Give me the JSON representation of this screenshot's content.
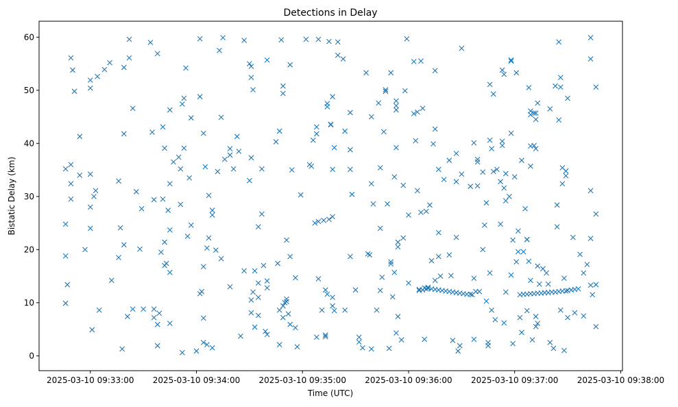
{
  "chart_data": {
    "type": "scatter",
    "title": "Detections in Delay",
    "xlabel": "Time (UTC)",
    "ylabel": "Bistatic Delay (km)",
    "x_unit": "seconds after 2025-03-10 09:33:00",
    "xlim": [
      -29,
      301
    ],
    "ylim": [
      -2.8,
      63
    ],
    "grid": false,
    "marker": "x",
    "color": "#1f77b4",
    "x_ticks": [
      {
        "value": 0,
        "label": "2025-03-10 09:33:00"
      },
      {
        "value": 60,
        "label": "2025-03-10 09:34:00"
      },
      {
        "value": 120,
        "label": "2025-03-10 09:35:00"
      },
      {
        "value": 180,
        "label": "2025-03-10 09:36:00"
      },
      {
        "value": 240,
        "label": "2025-03-10 09:37:00"
      },
      {
        "value": 300,
        "label": "2025-03-10 09:38:00"
      }
    ],
    "y_ticks": [
      {
        "value": 0,
        "label": "0"
      },
      {
        "value": 10,
        "label": "10"
      },
      {
        "value": 20,
        "label": "20"
      },
      {
        "value": 30,
        "label": "30"
      },
      {
        "value": 40,
        "label": "40"
      },
      {
        "value": 50,
        "label": "50"
      },
      {
        "value": 60,
        "label": "60"
      }
    ],
    "points": [
      [
        -14,
        35.2
      ],
      [
        -14,
        24.8
      ],
      [
        -14,
        18.8
      ],
      [
        -13,
        13.4
      ],
      [
        -14,
        9.9
      ],
      [
        -11,
        36
      ],
      [
        -11,
        56.1
      ],
      [
        -10,
        53.8
      ],
      [
        -11,
        32.4
      ],
      [
        -11,
        29.5
      ],
      [
        -9,
        49.8
      ],
      [
        -6,
        41.3
      ],
      [
        -6,
        34
      ],
      [
        -3,
        20
      ],
      [
        0,
        51.9
      ],
      [
        0,
        50.4
      ],
      [
        0,
        34.2
      ],
      [
        0,
        28
      ],
      [
        0,
        24
      ],
      [
        1,
        4.9
      ],
      [
        2,
        30
      ],
      [
        3,
        31.1
      ],
      [
        4,
        52.6
      ],
      [
        5,
        8.6
      ],
      [
        8,
        53.9
      ],
      [
        11,
        55.2
      ],
      [
        12,
        14.2
      ],
      [
        16,
        32.9
      ],
      [
        16,
        18.5
      ],
      [
        17,
        24.1
      ],
      [
        19,
        54.3
      ],
      [
        19,
        20.9
      ],
      [
        18,
        1.3
      ],
      [
        19,
        41.8
      ],
      [
        21,
        7.4
      ],
      [
        22,
        59.6
      ],
      [
        22,
        56.1
      ],
      [
        24,
        46.6
      ],
      [
        24,
        8.8
      ],
      [
        26,
        30.9
      ],
      [
        28,
        20.1
      ],
      [
        29,
        27.7
      ],
      [
        30,
        8.8
      ],
      [
        34,
        59
      ],
      [
        35,
        42.1
      ],
      [
        36,
        29.4
      ],
      [
        36,
        7.2
      ],
      [
        36,
        8.8
      ],
      [
        38,
        5.9
      ],
      [
        38,
        1.9
      ],
      [
        38,
        56.9
      ],
      [
        39,
        8
      ],
      [
        40,
        19.5
      ],
      [
        41,
        43.1
      ],
      [
        41,
        29.5
      ],
      [
        42,
        39.1
      ],
      [
        42,
        21.4
      ],
      [
        42,
        17
      ],
      [
        43,
        17.4
      ],
      [
        44,
        27.4
      ],
      [
        45,
        23.7
      ],
      [
        45,
        15.7
      ],
      [
        45,
        46.3
      ],
      [
        45,
        32.4
      ],
      [
        45,
        6.1
      ],
      [
        47,
        36.5
      ],
      [
        50,
        37.4
      ],
      [
        51,
        35.2
      ],
      [
        51,
        28.5
      ],
      [
        52,
        0.6
      ],
      [
        52,
        47.4
      ],
      [
        53,
        48.5
      ],
      [
        53,
        39.1
      ],
      [
        54,
        54.2
      ],
      [
        55,
        22.5
      ],
      [
        56,
        33.5
      ],
      [
        57,
        44.8
      ],
      [
        57,
        24.6
      ],
      [
        60,
        0.9
      ],
      [
        62,
        59.7
      ],
      [
        62,
        48.8
      ],
      [
        62,
        11.7
      ],
      [
        63,
        12.1
      ],
      [
        64,
        7.1
      ],
      [
        64,
        41.9
      ],
      [
        64,
        16.8
      ],
      [
        65,
        35.6
      ],
      [
        66,
        20.3
      ],
      [
        64,
        2.5
      ],
      [
        66,
        2.1
      ],
      [
        67,
        30.2
      ],
      [
        67,
        22.2
      ],
      [
        69,
        27.4
      ],
      [
        69,
        26.5
      ],
      [
        69,
        1.5
      ],
      [
        71,
        19.9
      ],
      [
        72,
        34.7
      ],
      [
        73,
        57.5
      ],
      [
        74,
        18.3
      ],
      [
        74,
        44.9
      ],
      [
        75,
        59.9
      ],
      [
        76,
        37
      ],
      [
        79,
        39
      ],
      [
        79,
        13
      ],
      [
        79,
        37.8
      ],
      [
        81,
        35.2
      ],
      [
        83,
        41.3
      ],
      [
        84,
        38.5
      ],
      [
        85,
        3.7
      ],
      [
        87,
        16
      ],
      [
        87,
        59.4
      ],
      [
        90,
        33
      ],
      [
        90,
        55
      ],
      [
        91,
        54.5
      ],
      [
        91,
        8.1
      ],
      [
        91,
        52.4
      ],
      [
        92,
        50.1
      ],
      [
        91,
        37.3
      ],
      [
        91,
        10.5
      ],
      [
        92,
        12
      ],
      [
        93,
        16
      ],
      [
        93,
        5.4
      ],
      [
        95,
        24.3
      ],
      [
        95,
        7.6
      ],
      [
        95,
        13.7
      ],
      [
        95,
        11
      ],
      [
        97,
        35.2
      ],
      [
        97,
        26.7
      ],
      [
        98,
        17
      ],
      [
        99,
        4.6
      ],
      [
        100,
        4
      ],
      [
        100,
        14.1
      ],
      [
        100,
        55.7
      ],
      [
        100,
        12.8
      ],
      [
        105,
        40.3
      ],
      [
        106,
        17.4
      ],
      [
        107,
        8.6
      ],
      [
        107,
        42.3
      ],
      [
        107,
        2.1
      ],
      [
        108,
        59.5
      ],
      [
        109,
        50.8
      ],
      [
        109,
        49.4
      ],
      [
        109,
        7.2
      ],
      [
        109,
        9.4
      ],
      [
        110,
        10
      ],
      [
        111,
        21.8
      ],
      [
        111,
        10.2
      ],
      [
        111,
        10.7
      ],
      [
        112,
        7.9
      ],
      [
        113,
        54.8
      ],
      [
        113,
        18.7
      ],
      [
        114,
        35
      ],
      [
        113,
        5.9
      ],
      [
        116,
        14.7
      ],
      [
        116,
        5.3
      ],
      [
        117,
        1.7
      ],
      [
        119,
        30.3
      ],
      [
        122,
        59.6
      ],
      [
        124,
        36
      ],
      [
        125,
        35.7
      ],
      [
        126,
        40.6
      ],
      [
        128,
        41.8
      ],
      [
        128,
        43.1
      ],
      [
        127,
        25
      ],
      [
        128,
        3.5
      ],
      [
        129,
        14.5
      ],
      [
        129,
        59.6
      ],
      [
        129,
        25.3
      ],
      [
        131,
        8.6
      ],
      [
        132,
        25.5
      ],
      [
        133,
        3.9
      ],
      [
        133,
        12.4
      ],
      [
        133,
        3.6
      ],
      [
        134,
        11.6
      ],
      [
        134,
        47.5
      ],
      [
        134,
        46.9
      ],
      [
        135,
        25.7
      ],
      [
        135,
        59.2
      ],
      [
        136,
        43.5
      ],
      [
        136,
        43.6
      ],
      [
        137,
        48.8
      ],
      [
        137,
        26.2
      ],
      [
        137,
        35.1
      ],
      [
        137,
        9.4
      ],
      [
        137,
        11
      ],
      [
        138,
        39.2
      ],
      [
        138,
        8.5
      ],
      [
        140,
        59.1
      ],
      [
        140,
        56.6
      ],
      [
        143,
        55.9
      ],
      [
        144,
        42.3
      ],
      [
        144,
        8.6
      ],
      [
        147,
        35.1
      ],
      [
        147,
        45.8
      ],
      [
        147,
        38.8
      ],
      [
        147,
        18.7
      ],
      [
        148,
        30.4
      ],
      [
        150,
        12.4
      ],
      [
        152,
        3.5
      ],
      [
        152,
        2.6
      ],
      [
        154,
        1.5
      ],
      [
        156,
        53.3
      ],
      [
        157,
        19.2
      ],
      [
        158,
        19
      ],
      [
        159,
        1.3
      ],
      [
        159,
        32.4
      ],
      [
        159,
        45
      ],
      [
        160,
        28.6
      ],
      [
        162,
        8.6
      ],
      [
        163,
        47.6
      ],
      [
        164,
        24
      ],
      [
        164,
        35.4
      ],
      [
        164,
        12.3
      ],
      [
        165,
        14.8
      ],
      [
        167,
        49.8
      ],
      [
        167,
        50.1
      ],
      [
        166,
        42.2
      ],
      [
        168,
        28.6
      ],
      [
        169,
        1.4
      ],
      [
        170,
        53.3
      ],
      [
        170,
        17.7
      ],
      [
        170,
        17.3
      ],
      [
        171,
        11.1
      ],
      [
        172,
        33.7
      ],
      [
        172,
        15.7
      ],
      [
        173,
        4.3
      ],
      [
        173,
        48
      ],
      [
        173,
        46.3
      ],
      [
        173,
        39.2
      ],
      [
        173,
        47.1
      ],
      [
        174,
        7.4
      ],
      [
        174,
        20.5
      ],
      [
        174,
        21.4
      ],
      [
        176,
        3
      ],
      [
        177,
        22.2
      ],
      [
        177,
        32.1
      ],
      [
        178,
        49.9
      ],
      [
        179,
        59.7
      ],
      [
        180,
        13.7
      ],
      [
        180,
        26.5
      ],
      [
        183,
        55.4
      ],
      [
        183,
        45.6
      ],
      [
        184,
        40.5
      ],
      [
        185,
        31.1
      ],
      [
        185,
        45.9
      ],
      [
        186,
        12.5
      ],
      [
        187,
        55.5
      ],
      [
        187,
        27
      ],
      [
        188,
        46.6
      ],
      [
        189,
        3.1
      ],
      [
        190,
        27.2
      ],
      [
        190,
        12.6
      ],
      [
        192,
        28.4
      ],
      [
        191,
        12.9
      ],
      [
        194,
        39.9
      ],
      [
        193,
        17.9
      ],
      [
        195,
        42.7
      ],
      [
        195,
        53.7
      ],
      [
        195,
        14.2
      ],
      [
        197,
        18.7
      ],
      [
        197,
        35.1
      ],
      [
        197,
        23.2
      ],
      [
        198,
        15
      ],
      [
        200,
        33.2
      ],
      [
        203,
        19
      ],
      [
        203,
        36.8
      ],
      [
        204,
        15.1
      ],
      [
        205,
        2.9
      ],
      [
        207,
        38.1
      ],
      [
        207,
        32.8
      ],
      [
        207,
        22.3
      ],
      [
        209,
        1.9
      ],
      [
        208,
        0.9
      ],
      [
        210,
        34.2
      ],
      [
        210,
        57.9
      ],
      [
        215,
        31.9
      ],
      [
        217,
        3.1
      ],
      [
        217,
        40.1
      ],
      [
        217,
        14.6
      ],
      [
        219,
        37
      ],
      [
        219,
        36.5
      ],
      [
        219,
        32
      ],
      [
        222,
        34.6
      ],
      [
        222,
        20
      ],
      [
        223,
        24.6
      ],
      [
        224,
        10.3
      ],
      [
        224,
        28.8
      ],
      [
        225,
        1.9
      ],
      [
        225,
        2.5
      ],
      [
        226,
        40.6
      ],
      [
        226,
        15.6
      ],
      [
        226,
        51.1
      ],
      [
        227,
        39
      ],
      [
        228,
        49.3
      ],
      [
        227,
        8.6
      ],
      [
        228,
        34.7
      ],
      [
        229,
        6.8
      ],
      [
        230,
        35.1
      ],
      [
        232,
        32.8
      ],
      [
        232,
        24.8
      ],
      [
        233,
        53.8
      ],
      [
        233,
        40.4
      ],
      [
        233,
        39.6
      ],
      [
        234,
        6.2
      ],
      [
        234,
        31.6
      ],
      [
        234,
        53
      ],
      [
        235,
        12
      ],
      [
        235,
        29.2
      ],
      [
        235,
        34.3
      ],
      [
        237,
        30
      ],
      [
        238,
        55.5
      ],
      [
        238,
        15.2
      ],
      [
        238,
        41.9
      ],
      [
        238,
        55.7
      ],
      [
        239,
        2.3
      ],
      [
        239,
        21.8
      ],
      [
        240,
        33.7
      ],
      [
        241,
        53.3
      ],
      [
        241,
        17.7
      ],
      [
        242,
        19.6
      ],
      [
        242,
        23.5
      ],
      [
        243,
        7.2
      ],
      [
        244,
        36.8
      ],
      [
        244,
        4.4
      ],
      [
        245,
        19.6
      ],
      [
        246,
        27.7
      ],
      [
        247,
        8.5
      ],
      [
        247,
        21.9
      ],
      [
        247,
        21.9
      ],
      [
        248,
        17.8
      ],
      [
        248,
        50.5
      ],
      [
        249,
        39.5
      ],
      [
        249,
        14.2
      ],
      [
        249,
        35.7
      ],
      [
        250,
        3
      ],
      [
        251,
        39.6
      ],
      [
        249,
        45.4
      ],
      [
        249,
        46.1
      ],
      [
        251,
        45.7
      ],
      [
        252,
        7.4
      ],
      [
        252,
        45.7
      ],
      [
        252,
        44.5
      ],
      [
        254,
        13.5
      ],
      [
        253,
        6.1
      ],
      [
        252,
        39
      ],
      [
        253,
        16.9
      ],
      [
        252,
        5.5
      ],
      [
        253,
        47.6
      ],
      [
        256,
        16.4
      ],
      [
        258,
        15.6
      ],
      [
        259,
        13.5
      ],
      [
        260,
        2.5
      ],
      [
        260,
        46.5
      ],
      [
        262,
        1.4
      ],
      [
        263,
        50.8
      ],
      [
        264,
        28.4
      ],
      [
        264,
        24.3
      ],
      [
        265,
        59.1
      ],
      [
        265,
        44.4
      ],
      [
        266,
        52.4
      ],
      [
        266,
        8.6
      ],
      [
        266,
        50.6
      ],
      [
        267,
        32.4
      ],
      [
        267,
        35.4
      ],
      [
        268,
        14.6
      ],
      [
        268,
        1
      ],
      [
        269,
        33.9
      ],
      [
        269,
        34.8
      ],
      [
        270,
        7.2
      ],
      [
        270,
        48.5
      ],
      [
        273,
        22.3
      ],
      [
        274,
        8.1
      ],
      [
        277,
        19.1
      ],
      [
        279,
        15.6
      ],
      [
        279,
        7.5
      ],
      [
        281,
        17.2
      ],
      [
        283,
        59.9
      ],
      [
        283,
        55.9
      ],
      [
        283,
        31.1
      ],
      [
        283,
        22.1
      ],
      [
        283,
        13.3
      ],
      [
        284,
        11.5
      ],
      [
        286,
        26.7
      ],
      [
        286,
        13.4
      ],
      [
        286,
        50.6
      ],
      [
        286,
        5.5
      ],
      [
        186,
        12.3
      ],
      [
        188,
        12.4
      ],
      [
        189,
        12.8
      ],
      [
        191,
        12.7
      ],
      [
        193,
        12.6
      ],
      [
        195,
        12.5
      ],
      [
        197,
        12.4
      ],
      [
        199,
        12.3
      ],
      [
        201,
        12.2
      ],
      [
        203,
        12.1
      ],
      [
        205,
        12.0
      ],
      [
        207,
        11.9
      ],
      [
        209,
        11.8
      ],
      [
        211,
        11.7
      ],
      [
        213,
        11.6
      ],
      [
        215,
        11.6
      ],
      [
        216,
        11.5
      ],
      [
        218,
        12.1
      ],
      [
        220,
        12.1
      ],
      [
        243,
        11.5
      ],
      [
        245,
        11.6
      ],
      [
        247,
        11.6
      ],
      [
        249,
        11.7
      ],
      [
        251,
        11.7
      ],
      [
        253,
        11.8
      ],
      [
        255,
        11.8
      ],
      [
        257,
        11.9
      ],
      [
        259,
        11.9
      ],
      [
        261,
        12.0
      ],
      [
        263,
        12.0
      ],
      [
        265,
        12.1
      ],
      [
        267,
        12.2
      ],
      [
        269,
        12.2
      ],
      [
        270,
        12.3
      ],
      [
        272,
        12.4
      ],
      [
        274,
        12.5
      ],
      [
        276,
        12.6
      ]
    ]
  }
}
